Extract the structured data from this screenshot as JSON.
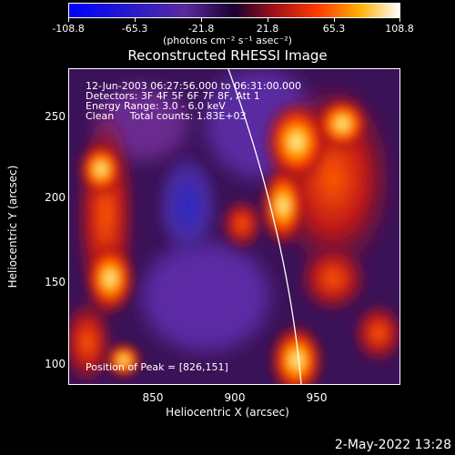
{
  "colorbar": {
    "ticks": [
      "-108.8",
      "-65.3",
      "-21.8",
      "21.8",
      "65.3",
      "108.8"
    ],
    "units": "(photons cm⁻² s⁻¹ asec⁻²)"
  },
  "title": "Reconstructed RHESSI Image",
  "annotation": {
    "line1": "12-Jun-2003 06:27:56.000 to 06:31:00.000",
    "line2": "Detectors: 3F 4F 5F 6F 7F 8F, Att 1",
    "line3": "Energy Range: 3.0 - 6.0 keV",
    "line4": "Clean     Total counts: 1.83E+03",
    "peak": "Position of Peak = [826,151]"
  },
  "axes": {
    "xlabel": "Heliocentric X (arcsec)",
    "ylabel": "Heliocentric Y (arcsec)",
    "xticks": [
      "850",
      "900",
      "950"
    ],
    "yticks": [
      "250",
      "200",
      "150",
      "100"
    ]
  },
  "footer": "2-May-2022 13:28"
}
